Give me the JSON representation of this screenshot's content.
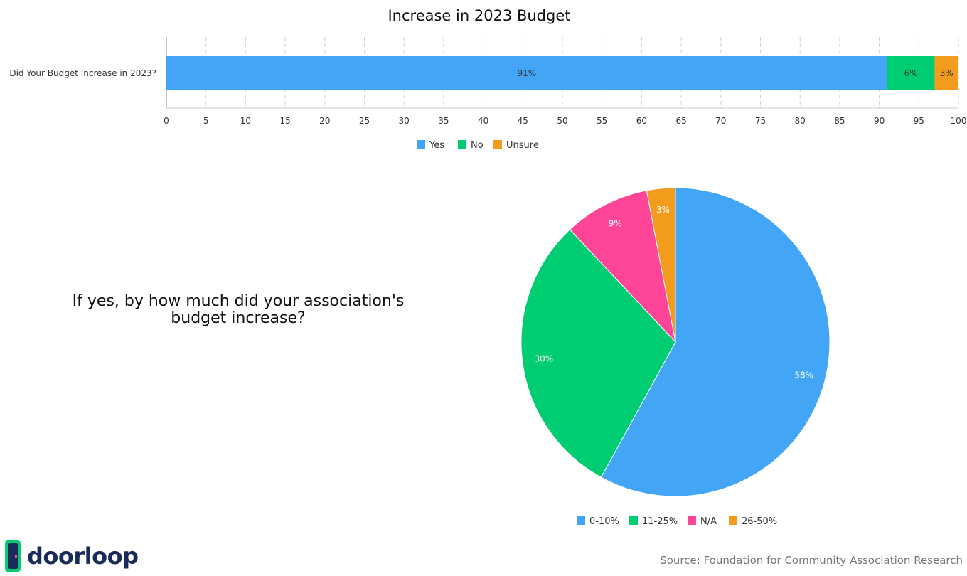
{
  "chart_data": [
    {
      "type": "bar",
      "orientation": "horizontal",
      "stacked": true,
      "title": "Increase in 2023 Budget",
      "categories": [
        "Did Your Budget Increase in 2023?"
      ],
      "series": [
        {
          "name": "Yes",
          "values": [
            91
          ],
          "label": "91%",
          "color": "#42a5f5"
        },
        {
          "name": "No",
          "values": [
            6
          ],
          "label": "6%",
          "color": "#00cc71"
        },
        {
          "name": "Unsure",
          "values": [
            3
          ],
          "label": "3%",
          "color": "#f29b1d"
        }
      ],
      "xlim": [
        0,
        100
      ],
      "xticks": [
        0,
        5,
        10,
        15,
        20,
        25,
        30,
        35,
        40,
        45,
        50,
        55,
        60,
        65,
        70,
        75,
        80,
        85,
        90,
        95,
        100
      ],
      "grid": true,
      "legend": "bottom"
    },
    {
      "type": "pie",
      "title": "If yes, by how much did your association's budget increase?",
      "slices": [
        {
          "label": "0-10%",
          "value": 58,
          "text": "58%",
          "color": "#42a5f5"
        },
        {
          "label": "11-25%",
          "value": 30,
          "text": "30%",
          "color": "#00cc71"
        },
        {
          "label": "N/A",
          "value": 9,
          "text": "9%",
          "color": "#ff4597"
        },
        {
          "label": "26-50%",
          "value": 3,
          "text": "3%",
          "color": "#f29b1d"
        }
      ],
      "legend": "bottom"
    }
  ],
  "branding": {
    "logo_text": "doorloop",
    "logo_icon": "door-icon"
  },
  "source": "Source: Foundation for Community Association Research"
}
